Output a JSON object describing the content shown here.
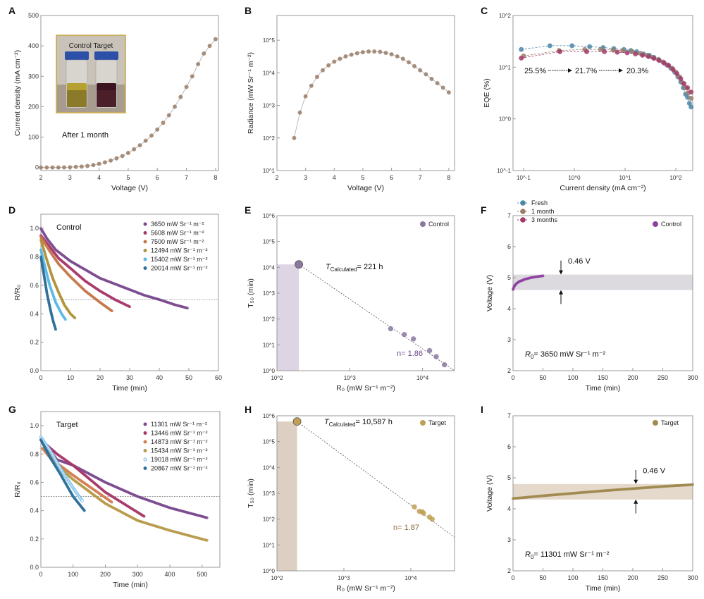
{
  "chart_data": [
    {
      "id": "A",
      "type": "scatter",
      "xlabel": "Voltage (V)",
      "ylabel": "Current density (mA cm⁻²)",
      "xscale": "linear",
      "yscale": "linear",
      "xlim": [
        2,
        8.1
      ],
      "ylim": [
        -10,
        500
      ],
      "xticks": [
        2,
        3,
        4,
        5,
        6,
        7,
        8
      ],
      "xtick_labels": [
        "2",
        "3",
        "4",
        "5",
        "6",
        "7",
        "8"
      ],
      "yticks": [
        0,
        100,
        200,
        300,
        400,
        500
      ],
      "ytick_labels": [
        "0",
        "100",
        "200",
        "300",
        "400",
        "500"
      ],
      "series": [
        {
          "color": "#9a7c66",
          "line": true,
          "x": [
            2.0,
            2.2,
            2.4,
            2.6,
            2.8,
            3.0,
            3.2,
            3.4,
            3.6,
            3.8,
            4.0,
            4.2,
            4.4,
            4.6,
            4.8,
            5.0,
            5.2,
            5.4,
            5.6,
            5.8,
            6.0,
            6.2,
            6.4,
            6.6,
            6.8,
            7.0,
            7.2,
            7.4,
            7.6,
            7.8,
            8.0
          ],
          "y": [
            0,
            0,
            0,
            0,
            0.5,
            1,
            2,
            3,
            5,
            8,
            12,
            17,
            23,
            30,
            38,
            48,
            60,
            73,
            88,
            105,
            125,
            147,
            172,
            200,
            232,
            265,
            300,
            340,
            375,
            400,
            422
          ]
        }
      ],
      "inset": {
        "label": "Control Target",
        "caption": "After 1 month"
      }
    },
    {
      "id": "B",
      "type": "scatter",
      "xlabel": "Voltage (V)",
      "ylabel": "Radiance (mW Sr⁻¹ m⁻²)",
      "xscale": "linear",
      "yscale": "log",
      "xlim": [
        2,
        8.2
      ],
      "ylim": [
        10,
        575000
      ],
      "xticks": [
        2,
        3,
        4,
        5,
        6,
        7,
        8
      ],
      "xtick_labels": [
        "2",
        "3",
        "4",
        "5",
        "6",
        "7",
        "8"
      ],
      "yticks": [
        10,
        100,
        1000,
        10000,
        100000
      ],
      "ytick_labels": [
        "10^1",
        "10^2",
        "10^3",
        "10^4",
        "10^5"
      ],
      "series": [
        {
          "color": "#9a7c66",
          "line": true,
          "x": [
            2.6,
            2.8,
            3.0,
            3.2,
            3.4,
            3.6,
            3.8,
            4.0,
            4.2,
            4.4,
            4.6,
            4.8,
            5.0,
            5.2,
            5.4,
            5.6,
            5.8,
            6.0,
            6.2,
            6.4,
            6.6,
            6.8,
            7.0,
            7.2,
            7.4,
            7.6,
            7.8,
            8.0
          ],
          "y": [
            100,
            600,
            1900,
            4000,
            7500,
            12000,
            17000,
            22000,
            27000,
            32000,
            36000,
            40000,
            43000,
            45000,
            45000,
            44000,
            41000,
            37000,
            32000,
            27000,
            21000,
            16000,
            12000,
            9000,
            6500,
            4800,
            3500,
            2500
          ]
        }
      ]
    },
    {
      "id": "C",
      "type": "scatter",
      "xlabel": "Current density (mA cm⁻²)",
      "ylabel": "EQE (%)",
      "xscale": "log",
      "yscale": "log",
      "xlim": [
        0.062,
        215
      ],
      "ylim": [
        0.1,
        100
      ],
      "xticks": [
        0.1,
        1,
        10,
        100
      ],
      "xtick_labels": [
        "10^-1",
        "10^0",
        "10^1",
        "10^2"
      ],
      "yticks": [
        0.1,
        1,
        10,
        100
      ],
      "ytick_labels": [
        "10^-1",
        "10^0",
        "10^1",
        "10^2"
      ],
      "series": [
        {
          "name": "Fresh",
          "color": "#4d86a8",
          "dash": true,
          "x": [
            0.09,
            0.33,
            0.9,
            2,
            3.7,
            6,
            9.5,
            13,
            17,
            23,
            30,
            37,
            46,
            56,
            67,
            80,
            95,
            110,
            125,
            140,
            155,
            170,
            185,
            200
          ],
          "y": [
            22,
            26,
            26,
            25,
            24,
            23,
            22,
            21,
            20,
            18,
            17,
            15.5,
            14,
            12.5,
            11,
            9.5,
            8,
            6.5,
            5.2,
            4,
            3,
            2.6,
            2.0,
            1.7
          ]
        },
        {
          "name": "1 month",
          "color": "#9a7c66",
          "dash": true,
          "x": [
            0.1,
            0.5,
            1.6,
            3.3,
            5.8,
            9,
            14,
            20,
            27,
            35,
            45,
            57,
            70,
            85,
            100,
            118,
            135,
            155,
            175,
            200
          ],
          "y": [
            16.5,
            21,
            22,
            22,
            21.5,
            21,
            20,
            18.5,
            17,
            15.5,
            14,
            12.5,
            11,
            9.5,
            8,
            6.5,
            5,
            4,
            3.2,
            2.5
          ]
        },
        {
          "name": "3 months",
          "color": "#a33a6a",
          "dash": true,
          "x": [
            0.09,
            0.52,
            1.75,
            3.9,
            7,
            11,
            16,
            22,
            29,
            37,
            47,
            59,
            72,
            88,
            105,
            125,
            145,
            170,
            200
          ],
          "y": [
            15,
            20,
            20,
            20,
            19.5,
            19,
            18,
            17,
            16,
            14.8,
            13.5,
            12,
            10.8,
            9,
            7.5,
            6,
            4.8,
            4,
            3.3
          ]
        }
      ],
      "annotations": [
        "25.5%",
        "21.7%",
        "20.3%"
      ],
      "legend_position": "bottom-left"
    },
    {
      "id": "D",
      "type": "scatter",
      "xlabel": "Time (min)",
      "ylabel": "R/R₀",
      "xscale": "linear",
      "yscale": "linear",
      "xlim": [
        0,
        60
      ],
      "ylim": [
        0,
        1.1
      ],
      "xticks": [
        0,
        10,
        20,
        30,
        40,
        50,
        60
      ],
      "xtick_labels": [
        "0",
        "10",
        "20",
        "30",
        "40",
        "50",
        "60"
      ],
      "yticks": [
        0,
        0.2,
        0.4,
        0.6,
        0.8,
        1.0
      ],
      "ytick_labels": [
        "0.0",
        "0.2",
        "0.4",
        "0.6",
        "0.8",
        "1.0"
      ],
      "reference_line": 0.5,
      "series": [
        {
          "name": "3650 mW Sr⁻¹ m⁻²",
          "color": "#7b4a8f",
          "x": [
            0,
            2,
            5,
            10,
            15,
            20,
            25,
            30,
            35,
            40,
            45,
            49.5
          ],
          "y": [
            1.0,
            0.93,
            0.85,
            0.77,
            0.71,
            0.65,
            0.61,
            0.57,
            0.53,
            0.5,
            0.465,
            0.44
          ]
        },
        {
          "name": "5608 mW Sr⁻¹ m⁻²",
          "color": "#a8386a",
          "x": [
            0,
            3,
            6,
            10,
            15,
            20,
            25,
            30
          ],
          "y": [
            0.95,
            0.87,
            0.79,
            0.72,
            0.63,
            0.56,
            0.5,
            0.45
          ]
        },
        {
          "name": "7500 mW Sr⁻¹ m⁻²",
          "color": "#c4784a",
          "x": [
            0,
            3,
            6,
            10,
            15,
            20,
            24
          ],
          "y": [
            0.94,
            0.84,
            0.75,
            0.66,
            0.56,
            0.48,
            0.42
          ]
        },
        {
          "name": "12494 mW Sr⁻¹ m⁻²",
          "color": "#b0923a",
          "x": [
            0,
            2,
            4,
            6,
            8,
            10,
            11.5
          ],
          "y": [
            0.92,
            0.78,
            0.65,
            0.55,
            0.46,
            0.4,
            0.37
          ]
        },
        {
          "name": "15402 mW Sr⁻¹ m⁻²",
          "color": "#5bb8e8",
          "x": [
            0,
            1.5,
            3,
            5,
            7,
            8.3
          ],
          "y": [
            0.85,
            0.72,
            0.6,
            0.48,
            0.4,
            0.36
          ]
        },
        {
          "name": "20014 mW Sr⁻¹ m⁻²",
          "color": "#2e6f99",
          "x": [
            0,
            1,
            2,
            3,
            4,
            5
          ],
          "y": [
            0.8,
            0.68,
            0.55,
            0.45,
            0.36,
            0.29
          ]
        }
      ],
      "annotations": [
        "Control"
      ],
      "legend_position": "top-right"
    },
    {
      "id": "E",
      "type": "scatter",
      "xlabel": "R₀ (mW Sr⁻¹ m⁻²)",
      "ylabel": "T₅₀ (min)",
      "xscale": "log",
      "yscale": "log",
      "xlim": [
        100,
        27500
      ],
      "ylim": [
        1,
        1000000
      ],
      "xticks": [
        100,
        1000,
        10000
      ],
      "xtick_labels": [
        "10^2",
        "10^3",
        "10^4"
      ],
      "yticks": [
        1,
        10,
        100,
        1000,
        10000,
        100000,
        1000000
      ],
      "ytick_labels": [
        "10^0",
        "10^1",
        "10^2",
        "10^3",
        "10^4",
        "10^5",
        "10^6"
      ],
      "shaded": {
        "x": [
          100,
          200
        ],
        "y": [
          1,
          13000
        ],
        "color": "#ddd5e3"
      },
      "fit_line": {
        "x": [
          200,
          27500
        ],
        "y": [
          13000,
          1
        ]
      },
      "highlight": {
        "x": 200,
        "y": 13000
      },
      "series": [
        {
          "name": "Control",
          "color": "#8a78a0",
          "x": [
            3650,
            5608,
            7500,
            12494,
            15402,
            20014
          ],
          "y": [
            42,
            25,
            17,
            6,
            3.5,
            1.7
          ]
        }
      ],
      "annotations": [
        {
          "italic": "T",
          "sub": "Calculated",
          "text": "= 221 h"
        },
        {
          "text": "n= 1.86",
          "color": "#6a4a8a"
        }
      ],
      "legend_position": "top-right"
    },
    {
      "id": "F",
      "type": "scatter",
      "xlabel": "Time (min)",
      "ylabel": "Voltage (V)",
      "xscale": "linear",
      "yscale": "linear",
      "xlim": [
        0,
        300
      ],
      "ylim": [
        2,
        7
      ],
      "xticks": [
        0,
        50,
        100,
        150,
        200,
        250,
        300
      ],
      "xtick_labels": [
        "0",
        "50",
        "100",
        "150",
        "200",
        "250",
        "300"
      ],
      "yticks": [
        2,
        3,
        4,
        5,
        6,
        7
      ],
      "ytick_labels": [
        "2",
        "3",
        "4",
        "5",
        "6",
        "7"
      ],
      "band": {
        "y": [
          4.6,
          5.1
        ],
        "color": "#dcdadf"
      },
      "series": [
        {
          "name": "Control",
          "color": "#8e3fa0",
          "x": [
            0,
            2,
            5,
            10,
            20,
            30,
            40,
            50
          ],
          "y": [
            4.62,
            4.72,
            4.8,
            4.87,
            4.95,
            5.0,
            5.03,
            5.06
          ]
        }
      ],
      "annotations": [
        {
          "text": "0.46 V"
        },
        {
          "italic": "R",
          "sub": "0",
          "text": "= 3650 mW Sr⁻¹ m⁻²"
        }
      ],
      "legend_position": "top-right"
    },
    {
      "id": "G",
      "type": "scatter",
      "xlabel": "Time (min)",
      "ylabel": "R/R₀",
      "xscale": "linear",
      "yscale": "linear",
      "xlim": [
        0,
        555
      ],
      "ylim": [
        0,
        1.1
      ],
      "xticks": [
        0,
        100,
        200,
        300,
        400,
        500
      ],
      "xtick_labels": [
        "0",
        "100",
        "200",
        "300",
        "400",
        "500"
      ],
      "yticks": [
        0,
        0.2,
        0.4,
        0.6,
        0.8,
        1.0
      ],
      "ytick_labels": [
        "0.0",
        "0.2",
        "0.4",
        "0.6",
        "0.8",
        "1.0"
      ],
      "reference_line": 0.5,
      "series": [
        {
          "name": "11301 mW Sr⁻¹ m⁻²",
          "color": "#7b4a8f",
          "x": [
            0,
            10,
            50,
            100,
            200,
            300,
            400,
            515
          ],
          "y": [
            0.92,
            0.88,
            0.76,
            0.72,
            0.6,
            0.5,
            0.42,
            0.35
          ]
        },
        {
          "name": "13446 mW Sr⁻¹ m⁻²",
          "color": "#a8386a",
          "x": [
            0,
            50,
            100,
            200,
            320
          ],
          "y": [
            0.9,
            0.8,
            0.72,
            0.53,
            0.36
          ]
        },
        {
          "name": "14873 mW Sr⁻¹ m⁻²",
          "color": "#d08050",
          "x": [
            5,
            30,
            100,
            220
          ],
          "y": [
            0.84,
            0.77,
            0.65,
            0.46
          ]
        },
        {
          "name": "15434 mW Sr⁻¹ m⁻²",
          "color": "#b89a4a",
          "x": [
            5,
            60,
            100,
            200,
            300,
            400,
            515
          ],
          "y": [
            0.88,
            0.7,
            0.62,
            0.45,
            0.33,
            0.26,
            0.19
          ]
        },
        {
          "name": "19018 mW Sr⁻¹ m⁻²",
          "color": "#6ab8e8",
          "hollow": true,
          "x": [
            0,
            30,
            60,
            100,
            128
          ],
          "y": [
            0.92,
            0.82,
            0.7,
            0.56,
            0.47
          ]
        },
        {
          "name": "20867 mW Sr⁻¹ m⁻²",
          "color": "#2e6f99",
          "x": [
            0,
            30,
            60,
            100,
            135
          ],
          "y": [
            0.9,
            0.77,
            0.66,
            0.5,
            0.4
          ]
        }
      ],
      "annotations": [
        "Target"
      ],
      "legend_position": "top-right"
    },
    {
      "id": "H",
      "type": "scatter",
      "xlabel": "R₀ (mW Sr⁻¹ m⁻²)",
      "ylabel": "T₅₀ (min)",
      "xscale": "log",
      "yscale": "log",
      "xlim": [
        100,
        45000
      ],
      "ylim": [
        1,
        1000000
      ],
      "xticks": [
        100,
        1000,
        10000
      ],
      "xtick_labels": [
        "10^2",
        "10^3",
        "10^4"
      ],
      "yticks": [
        1,
        10,
        100,
        1000,
        10000,
        100000,
        1000000
      ],
      "ytick_labels": [
        "10^0",
        "10^1",
        "10^2",
        "10^3",
        "10^4",
        "10^5",
        "10^6"
      ],
      "shaded": {
        "x": [
          100,
          200
        ],
        "y": [
          1,
          600000
        ],
        "color": "#ddd0c3"
      },
      "fit_line": {
        "x": [
          200,
          45000
        ],
        "y": [
          600000,
          20
        ]
      },
      "highlight": {
        "x": 200,
        "y": 600000
      },
      "series": [
        {
          "name": "Target",
          "color": "#c0a055",
          "x": [
            11301,
            13446,
            14873,
            15434,
            19018,
            20867
          ],
          "y": [
            300,
            200,
            190,
            170,
            120,
            100
          ]
        }
      ],
      "annotations": [
        {
          "italic": "T",
          "sub": "Calculated",
          "text": "= 10,587 h"
        },
        {
          "text": "n= 1.87",
          "color": "#8a6a3a"
        }
      ],
      "legend_position": "top-right"
    },
    {
      "id": "I",
      "type": "scatter",
      "xlabel": "Time (min)",
      "ylabel": "Voltage (V)",
      "xscale": "linear",
      "yscale": "linear",
      "xlim": [
        0,
        300
      ],
      "ylim": [
        2,
        7
      ],
      "xticks": [
        0,
        50,
        100,
        150,
        200,
        250,
        300
      ],
      "xtick_labels": [
        "0",
        "50",
        "100",
        "150",
        "200",
        "250",
        "300"
      ],
      "yticks": [
        2,
        3,
        4,
        5,
        6,
        7
      ],
      "ytick_labels": [
        "2",
        "3",
        "4",
        "5",
        "6",
        "7"
      ],
      "band": {
        "y": [
          4.3,
          4.8
        ],
        "color": "#e5d9cb"
      },
      "series": [
        {
          "name": "Target",
          "color": "#a08a50",
          "x": [
            0,
            50,
            100,
            150,
            200,
            250,
            300
          ],
          "y": [
            4.33,
            4.42,
            4.5,
            4.58,
            4.65,
            4.72,
            4.78
          ]
        }
      ],
      "annotations": [
        {
          "text": "0.46 V"
        },
        {
          "italic": "R",
          "sub": "0",
          "text": "= 11301 mW Sr⁻¹ m⁻²"
        }
      ],
      "legend_position": "top-right"
    }
  ]
}
